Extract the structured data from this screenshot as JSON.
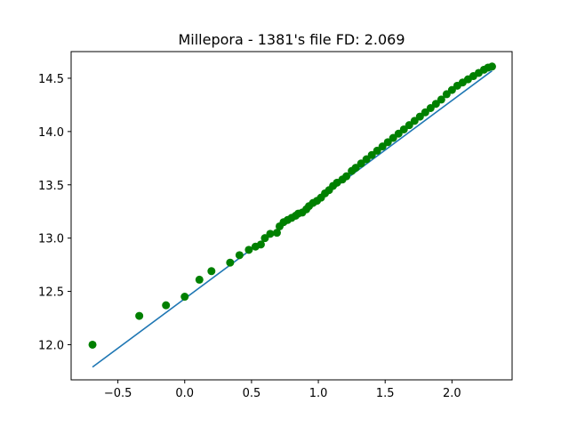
{
  "chart_data": {
    "type": "scatter",
    "title": "Millepora - 1381's file FD: 2.069",
    "xlabel": "",
    "ylabel": "",
    "xlim": [
      -0.85,
      2.45
    ],
    "ylim": [
      11.67,
      14.75
    ],
    "grid": false,
    "x_ticks": [
      -0.5,
      0.0,
      0.5,
      1.0,
      1.5,
      2.0
    ],
    "x_tick_labels": [
      "−0.5",
      "0.0",
      "0.5",
      "1.0",
      "1.5",
      "2.0"
    ],
    "y_ticks": [
      12.0,
      12.5,
      13.0,
      13.5,
      14.0,
      14.5
    ],
    "y_tick_labels": [
      "12.0",
      "12.5",
      "13.0",
      "13.5",
      "14.0",
      "14.5"
    ],
    "colors": {
      "points": "#008000",
      "fit_line": "#1f77b4"
    },
    "series": [
      {
        "type": "scatter",
        "points": [
          [
            -0.69,
            12.0
          ],
          [
            -0.34,
            12.27
          ],
          [
            -0.14,
            12.37
          ],
          [
            0.0,
            12.45
          ],
          [
            0.11,
            12.61
          ],
          [
            0.2,
            12.69
          ],
          [
            0.34,
            12.77
          ],
          [
            0.41,
            12.84
          ],
          [
            0.48,
            12.89
          ],
          [
            0.53,
            12.92
          ],
          [
            0.57,
            12.94
          ],
          [
            0.6,
            13.0
          ],
          [
            0.64,
            13.04
          ],
          [
            0.69,
            13.05
          ],
          [
            0.71,
            13.11
          ],
          [
            0.74,
            13.15
          ],
          [
            0.77,
            13.17
          ],
          [
            0.8,
            13.19
          ],
          [
            0.83,
            13.21
          ],
          [
            0.85,
            13.23
          ],
          [
            0.88,
            13.24
          ],
          [
            0.91,
            13.27
          ],
          [
            0.93,
            13.3
          ],
          [
            0.96,
            13.33
          ],
          [
            0.99,
            13.35
          ],
          [
            1.02,
            13.38
          ],
          [
            1.05,
            13.42
          ],
          [
            1.08,
            13.45
          ],
          [
            1.11,
            13.49
          ],
          [
            1.14,
            13.52
          ],
          [
            1.18,
            13.55
          ],
          [
            1.21,
            13.58
          ],
          [
            1.25,
            13.63
          ],
          [
            1.28,
            13.66
          ],
          [
            1.32,
            13.7
          ],
          [
            1.36,
            13.74
          ],
          [
            1.4,
            13.78
          ],
          [
            1.44,
            13.82
          ],
          [
            1.48,
            13.86
          ],
          [
            1.52,
            13.9
          ],
          [
            1.56,
            13.94
          ],
          [
            1.6,
            13.98
          ],
          [
            1.64,
            14.02
          ],
          [
            1.68,
            14.06
          ],
          [
            1.72,
            14.1
          ],
          [
            1.76,
            14.14
          ],
          [
            1.8,
            14.18
          ],
          [
            1.84,
            14.22
          ],
          [
            1.88,
            14.26
          ],
          [
            1.92,
            14.3
          ],
          [
            1.96,
            14.35
          ],
          [
            2.0,
            14.39
          ],
          [
            2.04,
            14.43
          ],
          [
            2.08,
            14.46
          ],
          [
            2.12,
            14.49
          ],
          [
            2.16,
            14.52
          ],
          [
            2.2,
            14.55
          ],
          [
            2.24,
            14.58
          ],
          [
            2.27,
            14.6
          ],
          [
            2.3,
            14.61
          ]
        ]
      },
      {
        "type": "line",
        "x": [
          -0.69,
          2.3
        ],
        "y": [
          11.79,
          14.57
        ]
      }
    ]
  }
}
